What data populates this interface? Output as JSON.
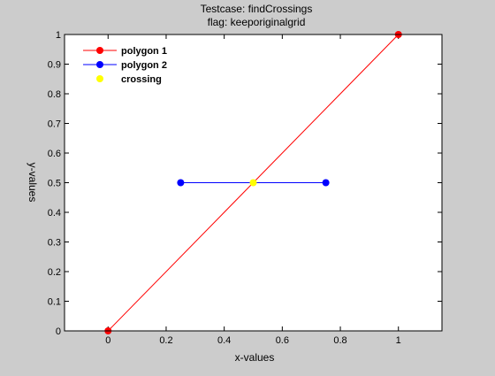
{
  "chart_data": {
    "type": "line",
    "title_line1": "Testcase: findCrossings",
    "title_line2": "flag: keeporiginalgrid",
    "xlabel": "x-values",
    "ylabel": "y-values",
    "xlim": [
      -0.15,
      1.15
    ],
    "ylim": [
      0,
      1
    ],
    "xticks": [
      0,
      0.2,
      0.4,
      0.6,
      0.8,
      1
    ],
    "xtick_labels": [
      "0",
      "0.2",
      "0.4",
      "0.6",
      "0.8",
      "1"
    ],
    "yticks": [
      0,
      0.1,
      0.2,
      0.3,
      0.4,
      0.5,
      0.6,
      0.7,
      0.8,
      0.9,
      1
    ],
    "ytick_labels": [
      "0",
      "0.1",
      "0.2",
      "0.3",
      "0.4",
      "0.5",
      "0.6",
      "0.7",
      "0.8",
      "0.9",
      "1"
    ],
    "grid": false,
    "legend_position": "top-left",
    "series": [
      {
        "name": "polygon 1",
        "color": "#ff0000",
        "line": true,
        "x": [
          0,
          1
        ],
        "y": [
          0,
          1
        ]
      },
      {
        "name": "polygon 2",
        "color": "#0000ff",
        "line": true,
        "x": [
          0.25,
          0.75
        ],
        "y": [
          0.5,
          0.5
        ]
      },
      {
        "name": "crossing",
        "color": "#ffff00",
        "line": false,
        "x": [
          0.5
        ],
        "y": [
          0.5
        ]
      }
    ]
  },
  "colors": {
    "figure_background": "#cccccc",
    "axes_background": "#ffffff",
    "axes_color": "#000000"
  }
}
